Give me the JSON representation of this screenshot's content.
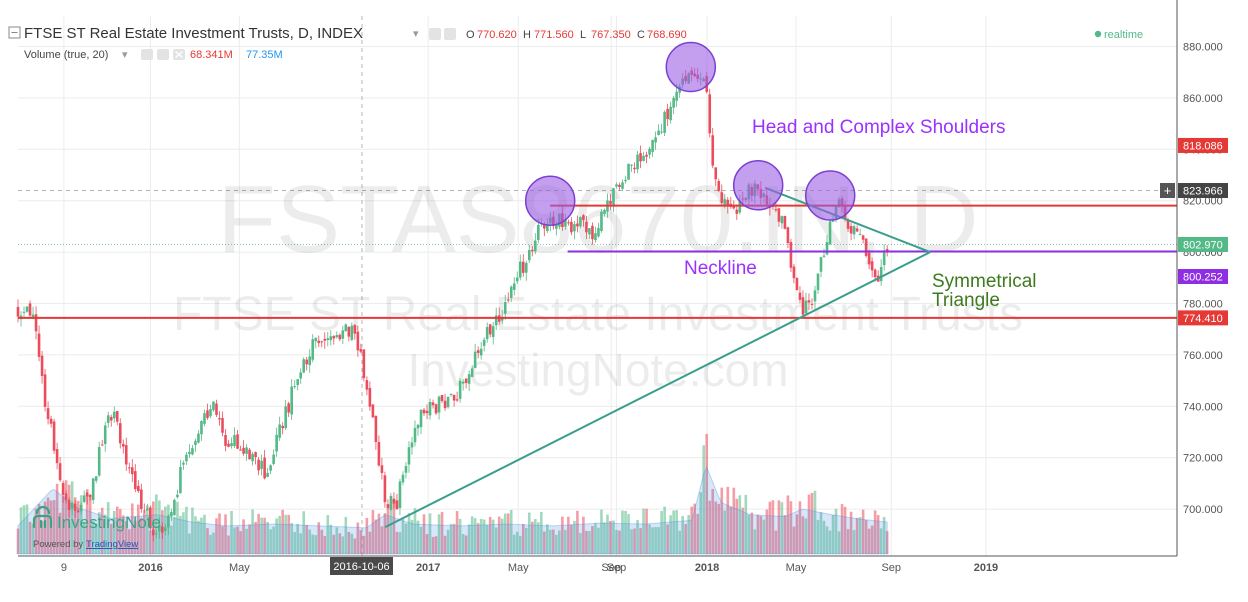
{
  "header": {
    "title": "FTSE ST Real Estate Investment Trusts, D, INDEX",
    "ohlc": [
      {
        "k": "O",
        "v": "770.620"
      },
      {
        "k": "H",
        "v": "771.560"
      },
      {
        "k": "L",
        "v": "767.350"
      },
      {
        "k": "C",
        "v": "768.690"
      }
    ],
    "volume_label": "Volume (true, 20)",
    "volume_value": "68.341M",
    "volume_ma": "77.35M",
    "realtime": "realtime"
  },
  "watermark": {
    "symbol": "FSTAS8670.IN, D",
    "name": "FTSE ST Real Estate Investment Trusts",
    "site": "InvestingNote.com"
  },
  "logo": {
    "name": "InvestingNote",
    "powered_by": "Powered by",
    "powered_link": "TradingView"
  },
  "annotations": {
    "pattern": "Head and Complex Shoulders",
    "neckline": "Neckline",
    "triangle_line1": "Symmetrical",
    "triangle_line2": "Triangle"
  },
  "colors": {
    "up": "#53b987",
    "down": "#eb4d5c",
    "resistance": "#e53935",
    "neckline": "#8e2de2",
    "triangle": "#3a9e8c",
    "circle_fill": "#9c5de5",
    "circle_stroke": "#7b3fd1",
    "pattern_text": "#9b30ff",
    "triangle_text": "#3e7a1e"
  },
  "chart_data": {
    "type": "candlestick",
    "title": "FTSE ST Real Estate Investment Trusts, D, INDEX",
    "ylim": [
      682,
      885
    ],
    "y_ticks": [
      "880.000",
      "860.000",
      "840.000",
      "820.000",
      "800.000",
      "780.000",
      "760.000",
      "740.000",
      "720.000",
      "700.000"
    ],
    "x_ticks": [
      "9",
      "2016",
      "May",
      "Sep",
      "2017",
      "May",
      "Sep",
      "2018",
      "May",
      "Sep",
      "2019"
    ],
    "crosshair_date": "2016-10-06",
    "price_tags": [
      {
        "label": "818.086",
        "value": 841.5,
        "color": "#e53935"
      },
      {
        "label": "823.966",
        "value": 823.966,
        "color": "#444444"
      },
      {
        "label": "802.970",
        "value": 802.97,
        "color": "#53b987"
      },
      {
        "label": "800.252",
        "value": 790.5,
        "color": "#8e2de2"
      },
      {
        "label": "774.410",
        "value": 774.41,
        "color": "#e53935"
      }
    ],
    "price_path": [
      [
        0,
        778
      ],
      [
        1.3,
        776
      ],
      [
        2.2,
        745
      ],
      [
        3.2,
        722
      ],
      [
        4.2,
        702
      ],
      [
        5.2,
        698
      ],
      [
        6.5,
        710
      ],
      [
        7.5,
        732
      ],
      [
        8.4,
        737
      ],
      [
        9.2,
        718
      ],
      [
        10.5,
        702
      ],
      [
        12,
        690
      ],
      [
        13.2,
        698
      ],
      [
        14.2,
        718
      ],
      [
        15.2,
        728
      ],
      [
        16.1,
        738
      ],
      [
        16.9,
        740
      ],
      [
        17.8,
        726
      ],
      [
        18.7,
        728
      ],
      [
        19.6,
        722
      ],
      [
        20.5,
        718
      ],
      [
        21.5,
        713
      ],
      [
        22.5,
        730
      ],
      [
        23.6,
        745
      ],
      [
        24.5,
        755
      ],
      [
        25.4,
        764
      ],
      [
        26.2,
        768
      ],
      [
        27.1,
        765
      ],
      [
        28.1,
        772
      ],
      [
        29,
        768
      ],
      [
        29.8,
        752
      ],
      [
        30.8,
        726
      ],
      [
        31.6,
        705
      ],
      [
        32.5,
        700
      ],
      [
        33.4,
        720
      ],
      [
        34.4,
        736
      ],
      [
        35.3,
        740
      ],
      [
        36.3,
        741
      ],
      [
        37.3,
        744
      ],
      [
        38.2,
        747
      ],
      [
        39.1,
        757
      ],
      [
        40.1,
        766
      ],
      [
        41,
        772
      ],
      [
        42,
        780
      ],
      [
        43,
        791
      ],
      [
        44,
        800
      ],
      [
        44.9,
        810
      ],
      [
        45.7,
        810
      ],
      [
        46.6,
        813
      ],
      [
        47.4,
        808
      ],
      [
        48.4,
        812
      ],
      [
        49.4,
        808
      ],
      [
        50.3,
        815
      ],
      [
        51.1,
        822
      ],
      [
        52.1,
        829
      ],
      [
        53,
        835
      ],
      [
        54,
        840
      ],
      [
        55,
        846
      ],
      [
        56,
        855
      ],
      [
        56.9,
        863
      ],
      [
        57.8,
        870
      ],
      [
        58.5,
        869
      ],
      [
        59.2,
        866
      ],
      [
        59.6,
        842
      ],
      [
        60.2,
        826
      ],
      [
        61,
        815
      ],
      [
        61.8,
        815
      ],
      [
        62.5,
        823
      ],
      [
        63.2,
        825
      ],
      [
        64,
        822
      ],
      [
        64.8,
        818
      ],
      [
        65.6,
        814
      ],
      [
        66.3,
        800
      ],
      [
        67,
        788
      ],
      [
        67.5,
        776
      ],
      [
        68.3,
        782
      ],
      [
        69,
        795
      ],
      [
        69.8,
        810
      ],
      [
        70.6,
        818
      ],
      [
        71.2,
        814
      ],
      [
        71.9,
        808
      ],
      [
        72.5,
        806
      ],
      [
        73.2,
        799
      ],
      [
        73.7,
        790
      ],
      [
        74.2,
        793
      ],
      [
        74.8,
        801
      ]
    ],
    "volume_path": [
      [
        0,
        0.3
      ],
      [
        3,
        0.7
      ],
      [
        5,
        0.5
      ],
      [
        8,
        0.38
      ],
      [
        12,
        0.42
      ],
      [
        15,
        0.34
      ],
      [
        18,
        0.3
      ],
      [
        22,
        0.32
      ],
      [
        26,
        0.3
      ],
      [
        30,
        0.28
      ],
      [
        31.6,
        0.42
      ],
      [
        34,
        0.32
      ],
      [
        38,
        0.3
      ],
      [
        42,
        0.32
      ],
      [
        46,
        0.3
      ],
      [
        50,
        0.33
      ],
      [
        54,
        0.32
      ],
      [
        58,
        0.36
      ],
      [
        59.2,
        0.95
      ],
      [
        60.5,
        0.55
      ],
      [
        63,
        0.42
      ],
      [
        66,
        0.4
      ],
      [
        67.5,
        0.48
      ],
      [
        70,
        0.42
      ],
      [
        72,
        0.38
      ],
      [
        74.8,
        0.34
      ]
    ],
    "overlays": {
      "resistance_lines": [
        818.086,
        774.41
      ],
      "neckline": 800.252,
      "triangle_upper": [
        [
          64.3,
          825
        ],
        [
          78.5,
          800
        ]
      ],
      "triangle_lower": [
        [
          31.6,
          693
        ],
        [
          78.5,
          800
        ]
      ],
      "circles": [
        [
          45.8,
          820
        ],
        [
          57.9,
          872
        ],
        [
          63.7,
          826
        ],
        [
          69.9,
          822
        ]
      ]
    }
  }
}
